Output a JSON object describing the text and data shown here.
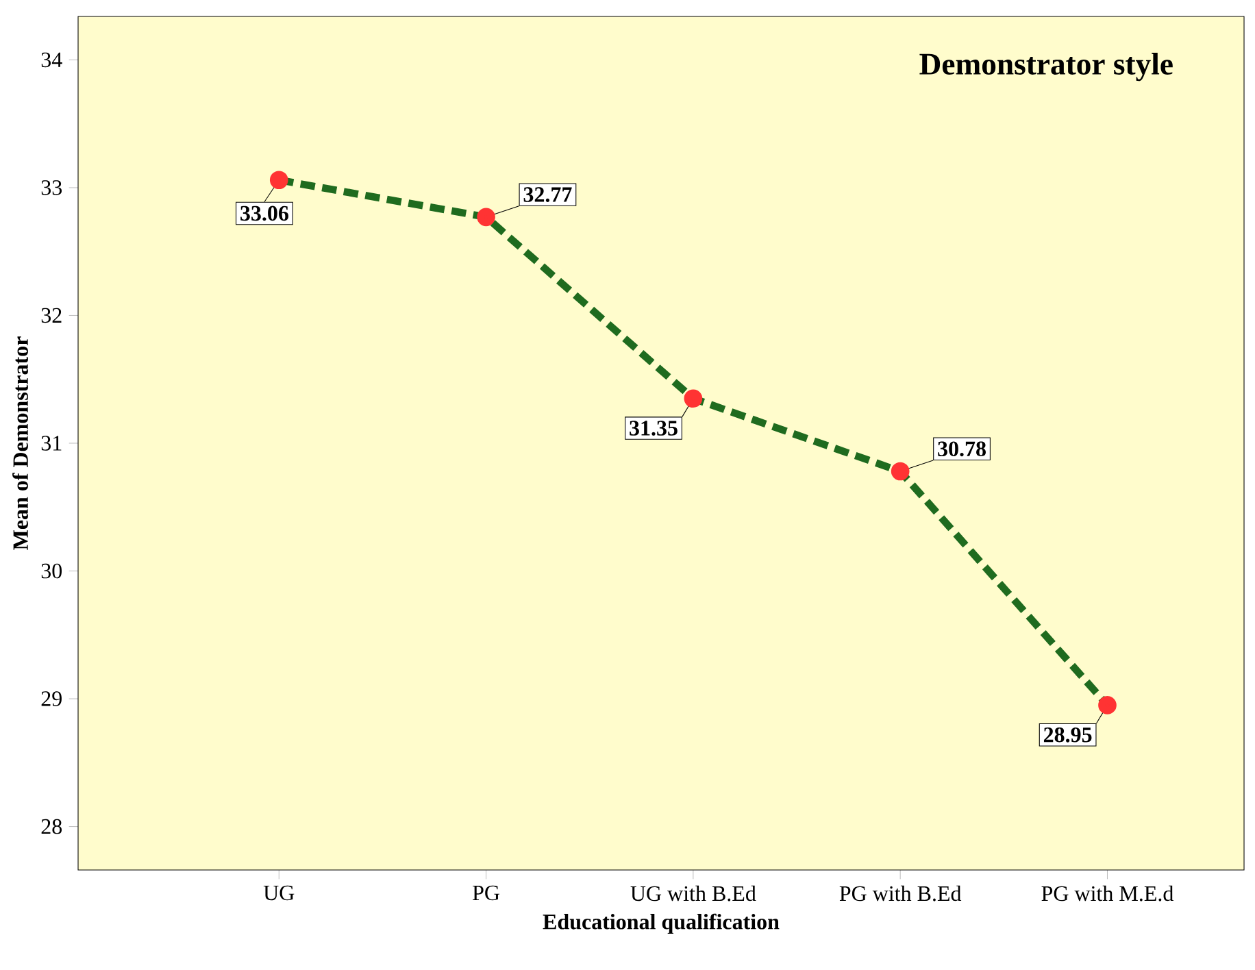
{
  "chart_data": {
    "type": "line",
    "title": "Demonstrator style",
    "xlabel": "Educational qualification",
    "ylabel": "Mean of Demonstrator",
    "categories": [
      "UG",
      "PG",
      "UG with B.Ed",
      "PG with B.Ed",
      "PG with M.E.d"
    ],
    "series": [
      {
        "color": "#1f6b1f",
        "values": [
          33.06,
          32.77,
          31.35,
          30.78,
          28.95
        ]
      }
    ],
    "ylim": [
      27.66,
      34.34
    ],
    "yticks": [
      28,
      29,
      30,
      31,
      32,
      33,
      34
    ],
    "marker": "circle",
    "line_style": "dashed",
    "data_labels": true
  }
}
